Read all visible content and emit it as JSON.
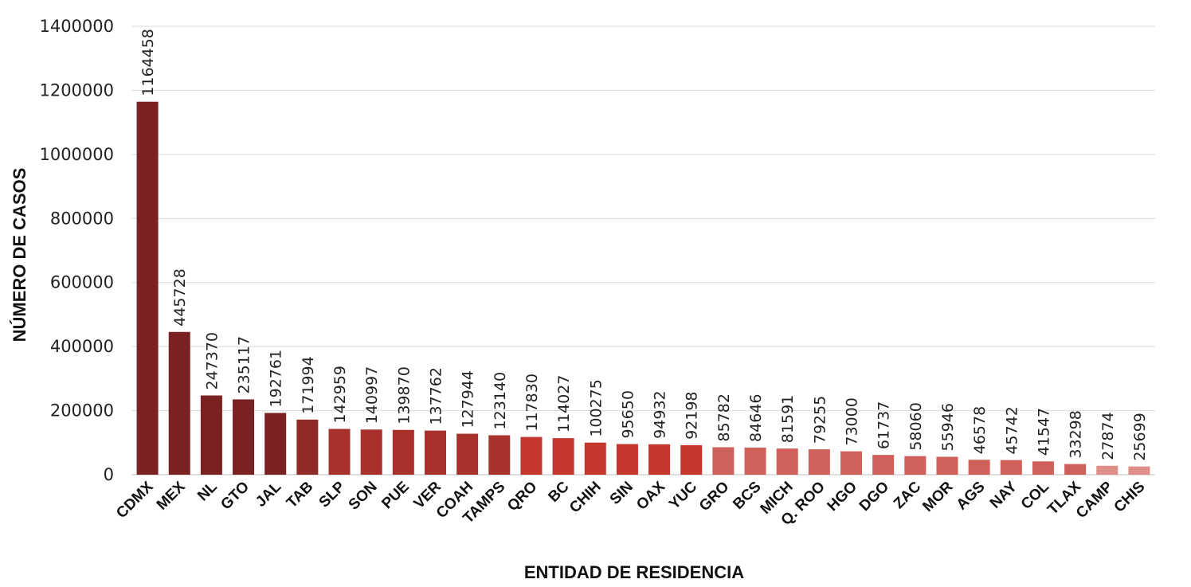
{
  "chart_data": {
    "type": "bar",
    "xlabel": "ENTIDAD DE RESIDENCIA",
    "ylabel": "NÚMERO DE CASOS",
    "ylim": [
      0,
      1400000
    ],
    "yticks": [
      0,
      200000,
      400000,
      600000,
      800000,
      1000000,
      1200000,
      1400000
    ],
    "grid": true,
    "categories": [
      "CDMX",
      "MEX",
      "NL",
      "GTO",
      "JAL",
      "TAB",
      "SLP",
      "SON",
      "PUE",
      "VER",
      "COAH",
      "TAMPS",
      "QRO",
      "BC",
      "CHIH",
      "SIN",
      "OAX",
      "YUC",
      "GRO",
      "BCS",
      "MICH",
      "Q. ROO",
      "HGO",
      "DGO",
      "ZAC",
      "MOR",
      "AGS",
      "NAY",
      "COL",
      "TLAX",
      "CAMP",
      "CHIS"
    ],
    "values": [
      1164458,
      445728,
      247370,
      235117,
      192761,
      171994,
      142959,
      140997,
      139870,
      137762,
      127944,
      123140,
      117830,
      114027,
      100275,
      95650,
      94932,
      92198,
      85782,
      84646,
      81591,
      79255,
      73000,
      61737,
      58060,
      55946,
      46578,
      45742,
      41547,
      33298,
      27874,
      25699
    ],
    "colors": [
      "#7a2121",
      "#7a2121",
      "#7a2121",
      "#7a2121",
      "#7a2121",
      "#8f2a26",
      "#a8322b",
      "#a8322b",
      "#a8322b",
      "#a8322b",
      "#a8322b",
      "#a8322b",
      "#c5362f",
      "#c5362f",
      "#c5362f",
      "#c5362f",
      "#c5362f",
      "#c5362f",
      "#d0605a",
      "#d0605a",
      "#d0605a",
      "#d0605a",
      "#d0605a",
      "#d0605a",
      "#d0605a",
      "#d0605a",
      "#d0605a",
      "#d0605a",
      "#d0605a",
      "#d0605a",
      "#e08e89",
      "#e08e89"
    ]
  }
}
